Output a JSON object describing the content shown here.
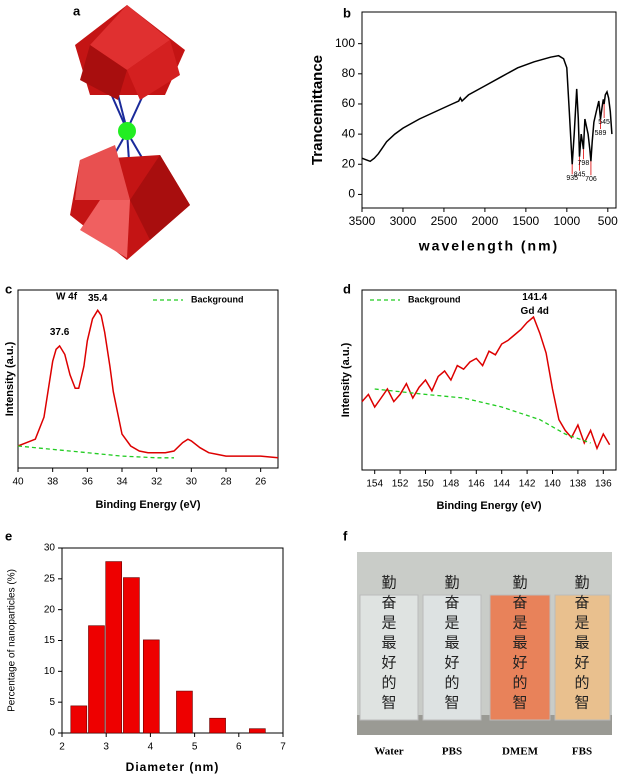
{
  "panel_labels": [
    "a",
    "b",
    "c",
    "d",
    "e",
    "f"
  ],
  "chart_data": [
    {
      "type": "line",
      "y_label": "Trancemittance",
      "x_label": "wavelength (nm)",
      "xlim": [
        3500,
        400
      ],
      "xticks": [
        3500,
        3000,
        2500,
        2000,
        1500,
        1000,
        500
      ],
      "ylim": [
        -9,
        121
      ],
      "yticks": [
        0,
        20,
        40,
        60,
        80,
        100
      ],
      "x": [
        3500,
        3450,
        3400,
        3350,
        3300,
        3200,
        3100,
        3000,
        2800,
        2600,
        2400,
        2320,
        2300,
        2280,
        2200,
        2000,
        1800,
        1600,
        1400,
        1200,
        1100,
        1040,
        1000,
        970,
        935,
        910,
        880,
        860,
        845,
        825,
        810,
        798,
        780,
        760,
        740,
        720,
        706,
        690,
        670,
        640,
        610,
        589,
        570,
        555,
        545,
        530,
        510,
        490,
        470,
        450
      ],
      "series": [
        {
          "color": "#000000",
          "values": [
            24,
            23,
            22,
            24,
            27,
            35,
            40,
            44,
            50,
            55,
            60,
            62,
            64,
            62,
            66,
            72,
            78,
            84,
            88,
            91,
            92,
            90,
            84,
            55,
            20,
            40,
            70,
            50,
            25,
            40,
            35,
            30,
            50,
            45,
            40,
            30,
            22,
            35,
            48,
            55,
            62,
            50,
            58,
            63,
            60,
            66,
            68,
            64,
            55,
            40
          ]
        }
      ],
      "annotations": [
        {
          "text": "935",
          "x": 935,
          "y": 20
        },
        {
          "text": "845",
          "x": 845,
          "y": 25
        },
        {
          "text": "798",
          "x": 798,
          "y": 30
        },
        {
          "text": "706",
          "x": 706,
          "y": 22
        },
        {
          "text": "589",
          "x": 589,
          "y": 50
        },
        {
          "text": "545",
          "x": 545,
          "y": 60
        }
      ]
    },
    {
      "type": "line",
      "y_label": "Intensity (a.u.)",
      "x_label": "Binding Energy (eV)",
      "xlim": [
        40,
        25
      ],
      "xticks": [
        40,
        38,
        36,
        34,
        32,
        30,
        28,
        26
      ],
      "ylim": [
        -5,
        100
      ],
      "legend": "upper right",
      "x": [
        40,
        39.5,
        39,
        38.5,
        38,
        37.8,
        37.6,
        37.3,
        37,
        36.7,
        36.5,
        36.2,
        36,
        35.7,
        35.4,
        35.2,
        35,
        34.7,
        34.5,
        34.2,
        34,
        33.5,
        33,
        32.5,
        32,
        31.5,
        31,
        30.5,
        30.2,
        30,
        29.5,
        29,
        28.5,
        28,
        27,
        26,
        25
      ],
      "series": [
        {
          "color": "#dd0000",
          "values": [
            8,
            10,
            12,
            25,
            58,
            65,
            67,
            62,
            50,
            42,
            42,
            55,
            70,
            83,
            88,
            85,
            75,
            55,
            40,
            25,
            15,
            8,
            5,
            4,
            4,
            4,
            5,
            10,
            12,
            11,
            7,
            4,
            3,
            2,
            2,
            2,
            1
          ]
        },
        {
          "name": "Background",
          "color": "#22cc22",
          "dash": true,
          "x": [
            40,
            38,
            36,
            34,
            32,
            31
          ],
          "values": [
            8,
            6,
            4,
            2,
            1,
            1
          ]
        }
      ],
      "annotations": [
        {
          "text": "W 4f",
          "x": 37.2,
          "y": 96
        },
        {
          "text": "37.6",
          "x": 37.6,
          "y": 75
        },
        {
          "text": "35.4",
          "x": 35.4,
          "y": 95
        }
      ]
    },
    {
      "type": "line",
      "y_label": "Intensity (a.u.)",
      "x_label": "Binding Energy (eV)",
      "xlim": [
        155,
        135
      ],
      "xticks": [
        154,
        152,
        150,
        148,
        146,
        144,
        142,
        140,
        138,
        136
      ],
      "ylim": [
        0,
        100
      ],
      "legend": "upper left",
      "x": [
        155,
        154.5,
        154,
        153.5,
        153,
        152.5,
        152,
        151.5,
        151,
        150.5,
        150,
        149.5,
        149,
        148.5,
        148,
        147.5,
        147,
        146.5,
        146,
        145.5,
        145,
        144.5,
        144,
        143.5,
        143,
        142.5,
        142,
        141.5,
        141,
        140.5,
        140,
        139.5,
        139,
        138.5,
        138,
        137.5,
        137,
        136.5,
        136,
        135.5
      ],
      "series": [
        {
          "color": "#dd0000",
          "values": [
            38,
            42,
            35,
            40,
            45,
            38,
            42,
            48,
            40,
            46,
            50,
            44,
            52,
            55,
            50,
            58,
            56,
            60,
            62,
            58,
            66,
            64,
            70,
            72,
            75,
            78,
            82,
            85,
            76,
            65,
            45,
            28,
            22,
            18,
            25,
            15,
            22,
            12,
            20,
            14
          ]
        },
        {
          "name": "Background",
          "color": "#22cc22",
          "dash": true,
          "x": [
            154,
            150,
            147,
            144,
            141,
            139,
            137
          ],
          "values": [
            45,
            42,
            40,
            35,
            28,
            20,
            15
          ]
        }
      ],
      "annotations": [
        {
          "text": "141.4",
          "x": 141.4,
          "y": 96
        },
        {
          "text": "Gd 4d",
          "x": 141.4,
          "y": 88
        }
      ]
    },
    {
      "type": "bar",
      "y_label": "Percentage of nanoparticles (%)",
      "x_label": "Diameter (nm)",
      "xlim": [
        2,
        7
      ],
      "xticks": [
        2,
        3,
        4,
        5,
        6,
        7
      ],
      "ylim": [
        0,
        30
      ],
      "yticks": [
        0,
        5,
        10,
        15,
        20,
        25,
        30
      ],
      "color": "#ee0000",
      "x": [
        2.38,
        2.78,
        3.17,
        3.57,
        4.02,
        4.77,
        5.52,
        6.42
      ],
      "values": [
        4.4,
        17.4,
        27.8,
        25.2,
        15.1,
        6.8,
        2.4,
        0.7
      ]
    }
  ],
  "photo": {
    "tube_labels": [
      "Water",
      "PBS",
      "DMEM",
      "FBS"
    ],
    "characters": [
      "勤",
      "奋",
      "是",
      "最",
      "好",
      "的",
      "智"
    ]
  }
}
